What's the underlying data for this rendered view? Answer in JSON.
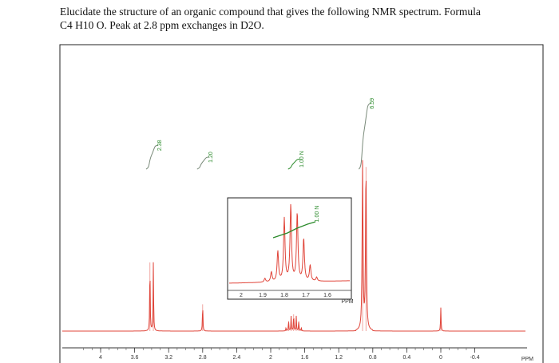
{
  "question": {
    "line1": "Elucidate the structure of an organic compound that gives the following NMR spectrum. Formula",
    "line2": "C4 H10 O. Peak at 2.8 ppm exchanges in D2O."
  },
  "chart_data": {
    "type": "line",
    "title": "",
    "xlabel": "PPM",
    "xlim": [
      4.4,
      -0.4
    ],
    "x_reversed": true,
    "x_ticks": [
      "4",
      "3.6",
      "3.2",
      "2.8",
      "2.4",
      "2",
      "1.6",
      "1.2",
      "0.8",
      "0.4",
      "0",
      "-0.4"
    ],
    "x_tick_values": [
      4,
      3.6,
      3.2,
      2.8,
      2.4,
      2,
      1.6,
      1.2,
      0.8,
      0.4,
      0,
      -0.4
    ],
    "peaks": [
      {
        "ppm": 3.42,
        "height": 41
      },
      {
        "ppm": 3.38,
        "height": 41
      },
      {
        "ppm": 2.8,
        "height": 16
      },
      {
        "ppm": 1.82,
        "height": 2
      },
      {
        "ppm": 1.79,
        "height": 6
      },
      {
        "ppm": 1.76,
        "height": 9
      },
      {
        "ppm": 1.73,
        "height": 10
      },
      {
        "ppm": 1.7,
        "height": 9
      },
      {
        "ppm": 1.67,
        "height": 6
      },
      {
        "ppm": 1.64,
        "height": 2
      },
      {
        "ppm": 0.92,
        "height": 100
      },
      {
        "ppm": 0.88,
        "height": 98
      },
      {
        "ppm": 0.0,
        "height": 14
      }
    ],
    "integrals": [
      {
        "label": "2.38",
        "value": 2.38,
        "ppm": 3.4
      },
      {
        "label": "1.20",
        "value": 1.2,
        "ppm": 2.8
      },
      {
        "label": "1.00 N",
        "value": 1.0,
        "ppm": 1.73
      },
      {
        "label": "6.59",
        "value": 6.59,
        "ppm": 0.9
      }
    ],
    "inset": {
      "xlabel": "PPM",
      "x_ticks": [
        "2",
        "1.9",
        "1.8",
        "1.7",
        "1.6"
      ],
      "x_tick_values": [
        2,
        1.9,
        1.8,
        1.7,
        1.6
      ],
      "integral_label": "1.00 N",
      "peaks": [
        {
          "ppm": 1.89,
          "height": 0.05
        },
        {
          "ppm": 1.86,
          "height": 0.13
        },
        {
          "ppm": 1.83,
          "height": 0.4
        },
        {
          "ppm": 1.8,
          "height": 0.83
        },
        {
          "ppm": 1.77,
          "height": 1
        },
        {
          "ppm": 1.74,
          "height": 0.9
        },
        {
          "ppm": 1.71,
          "height": 0.56
        },
        {
          "ppm": 1.68,
          "height": 0.21
        },
        {
          "ppm": 1.65,
          "height": 0.05
        }
      ]
    },
    "colors": {
      "spectrum": "#e0453a",
      "integral": "#2a8a2a",
      "integral_main": "#7a8a7a",
      "frame": "#222222"
    }
  }
}
